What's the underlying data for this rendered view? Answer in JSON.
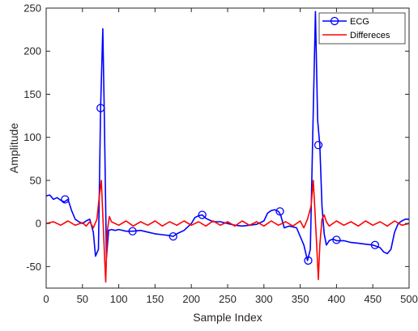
{
  "chart_data": {
    "type": "line",
    "title": "",
    "xlabel": "Sample Index",
    "ylabel": "Amplitude",
    "xlim": [
      0,
      500
    ],
    "ylim": [
      -75,
      250
    ],
    "xticks": [
      0,
      50,
      100,
      150,
      200,
      250,
      300,
      350,
      400,
      450,
      500
    ],
    "yticks": [
      -50,
      0,
      50,
      100,
      150,
      200,
      250
    ],
    "grid": false,
    "legend_position": "top-right",
    "series": [
      {
        "name": "ECG",
        "color": "#0000FF",
        "marker": "circle",
        "x": [
          0,
          5,
          10,
          15,
          20,
          25,
          30,
          35,
          40,
          45,
          50,
          55,
          60,
          65,
          68,
          72,
          75,
          78,
          80,
          83,
          86,
          90,
          95,
          100,
          110,
          120,
          130,
          140,
          150,
          160,
          170,
          175,
          180,
          190,
          200,
          205,
          210,
          215,
          220,
          230,
          240,
          250,
          260,
          270,
          280,
          290,
          300,
          305,
          310,
          315,
          320,
          323,
          328,
          335,
          345,
          355,
          360,
          364,
          368,
          371,
          374,
          377,
          380,
          383,
          386,
          390,
          395,
          400,
          410,
          420,
          430,
          440,
          450,
          460,
          465,
          470,
          475,
          480,
          485,
          490,
          495,
          500
        ],
        "values": [
          32,
          33,
          28,
          30,
          27,
          25,
          28,
          15,
          5,
          2,
          0,
          3,
          5,
          -10,
          -38,
          -30,
          134,
          226,
          130,
          -40,
          -8,
          -7,
          -8,
          -7,
          -9,
          -9,
          -8,
          -10,
          -12,
          -13,
          -14,
          -15,
          -12,
          -8,
          0,
          7,
          9,
          10,
          6,
          2,
          2,
          0,
          -2,
          -3,
          -2,
          -1,
          3,
          12,
          15,
          16,
          14,
          10,
          -5,
          -3,
          -5,
          -25,
          -43,
          -30,
          130,
          246,
          120,
          91,
          20,
          -12,
          -25,
          -20,
          -18,
          -20,
          -20,
          -22,
          -23,
          -24,
          -25,
          -28,
          -33,
          -35,
          -30,
          -10,
          0,
          3,
          5,
          5
        ],
        "markers_x": [
          26,
          75,
          119,
          175,
          215,
          322,
          361,
          375,
          400,
          453
        ],
        "markers_y": [
          28,
          134,
          -9,
          -15,
          10,
          14,
          -43,
          91,
          -19,
          -25
        ]
      },
      {
        "name": "Differeces",
        "color": "#FF0000",
        "marker": "none",
        "x": [
          0,
          10,
          20,
          30,
          40,
          50,
          55,
          60,
          65,
          70,
          73,
          76,
          78,
          80,
          82,
          84,
          87,
          90,
          100,
          110,
          120,
          130,
          140,
          150,
          160,
          170,
          180,
          190,
          200,
          210,
          220,
          230,
          240,
          250,
          260,
          270,
          280,
          290,
          300,
          310,
          320,
          330,
          340,
          350,
          355,
          360,
          365,
          368,
          370,
          373,
          375,
          377,
          380,
          383,
          386,
          390,
          400,
          410,
          420,
          430,
          440,
          450,
          460,
          470,
          480,
          490,
          500
        ],
        "values": [
          0,
          2,
          -2,
          3,
          -2,
          1,
          -3,
          2,
          -5,
          5,
          30,
          50,
          10,
          -30,
          -68,
          -10,
          8,
          2,
          -2,
          3,
          -3,
          2,
          -2,
          3,
          -3,
          2,
          -2,
          3,
          -2,
          2,
          -3,
          3,
          -2,
          2,
          -3,
          3,
          -2,
          2,
          -3,
          3,
          -2,
          2,
          -3,
          3,
          -5,
          5,
          20,
          50,
          20,
          -30,
          -65,
          -25,
          5,
          10,
          2,
          -3,
          3,
          -2,
          2,
          -3,
          3,
          -2,
          2,
          -3,
          3,
          -2,
          0
        ]
      }
    ]
  }
}
